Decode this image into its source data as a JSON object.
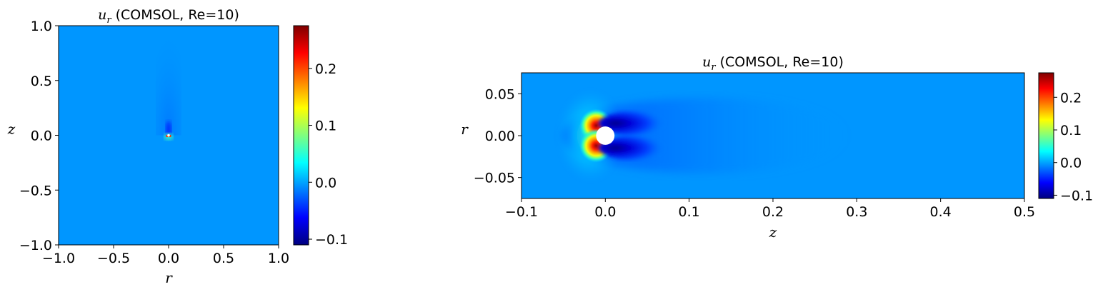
{
  "colors": {
    "background_field": "#0096ff",
    "jet_stops": [
      "#00007f",
      "#0000ff",
      "#007fff",
      "#00ffff",
      "#7fff7f",
      "#ffff00",
      "#ff7f00",
      "#ff0000",
      "#7f0000"
    ]
  },
  "chart_data": [
    {
      "type": "heatmap",
      "title_var": "u",
      "title_sub": "r",
      "title_rest": " (COMSOL, Re=10)",
      "xlabel": "r",
      "ylabel": "z",
      "xlim": [
        -1.0,
        1.0
      ],
      "ylim": [
        -1.0,
        1.0
      ],
      "x_ticks": [
        -1.0,
        -0.5,
        0.0,
        0.5,
        1.0
      ],
      "x_tick_labels": [
        "−1.0",
        "−0.5",
        "0.0",
        "0.5",
        "1.0"
      ],
      "y_ticks": [
        -1.0,
        -0.5,
        0.0,
        0.5,
        1.0
      ],
      "y_tick_labels": [
        "−1.0",
        "−0.5",
        "0.0",
        "0.5",
        "1.0"
      ],
      "background_value": 0.0,
      "colorbar": {
        "range": [
          -0.11,
          0.275
        ],
        "ticks": [
          -0.1,
          0.0,
          0.1,
          0.2
        ],
        "tick_labels": [
          "−0.1",
          "0.0",
          "0.1",
          "0.2"
        ]
      }
    },
    {
      "type": "heatmap",
      "title_var": "u",
      "title_sub": "r",
      "title_rest": " (COMSOL, Re=10)",
      "xlabel": "z",
      "ylabel": "r",
      "xlim": [
        -0.1,
        0.5
      ],
      "ylim": [
        -0.075,
        0.075
      ],
      "x_ticks": [
        -0.1,
        0.0,
        0.1,
        0.2,
        0.3,
        0.4,
        0.5
      ],
      "x_tick_labels": [
        "−0.1",
        "0.0",
        "0.1",
        "0.2",
        "0.3",
        "0.4",
        "0.5"
      ],
      "y_ticks": [
        -0.05,
        0.0,
        0.05
      ],
      "y_tick_labels": [
        "−0.05",
        "0.00",
        "0.05"
      ],
      "sphere_radius": 0.011,
      "background_value": 0.0,
      "features": [
        {
          "name": "upstream-max-upper",
          "z": -0.011,
          "r": 0.012,
          "value": 0.27
        },
        {
          "name": "upstream-max-lower",
          "z": -0.011,
          "r": -0.012,
          "value": 0.27
        },
        {
          "name": "downstream-min-upper",
          "z": 0.012,
          "r": 0.013,
          "value": -0.1
        },
        {
          "name": "downstream-min-lower",
          "z": 0.012,
          "r": -0.013,
          "value": -0.1
        }
      ],
      "colorbar": {
        "range": [
          -0.11,
          0.275
        ],
        "ticks": [
          -0.1,
          0.0,
          0.1,
          0.2
        ],
        "tick_labels": [
          "−0.1",
          "0.0",
          "0.1",
          "0.2"
        ]
      }
    }
  ]
}
